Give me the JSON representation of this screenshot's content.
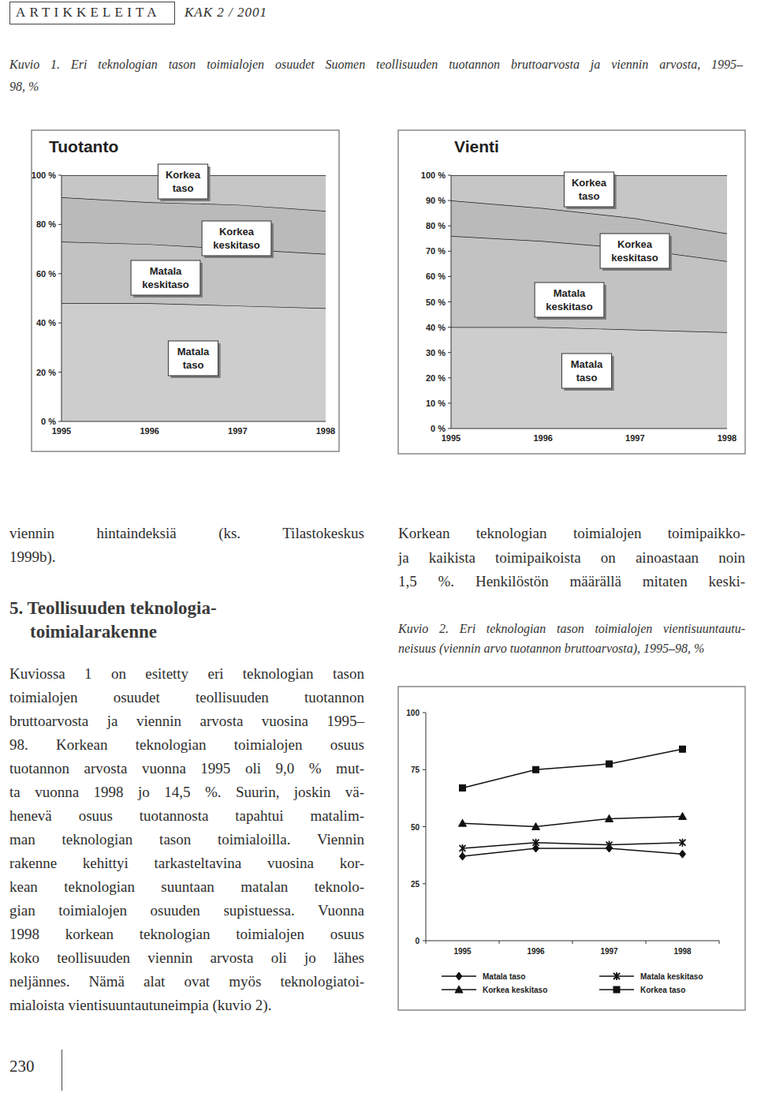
{
  "page": {
    "header": {
      "section": "ARTIKKELEITA",
      "journal": "KAK 2 / 2001"
    },
    "figure1_caption": [
      "Kuvio 1. Eri teknologian tason toimialojen osuudet Suomen teollisuuden tuotannon bruttoarvosta ja viennin arvosta, 1995–",
      "98, %"
    ],
    "left_column": {
      "paragraph_1": [
        "viennin hintaindeksiä (ks. Tilastokeskus",
        "1999b)."
      ],
      "heading": [
        "5. Teollisuuden teknologia-",
        "toimialarakenne"
      ],
      "paragraph_2": [
        "Kuviossa 1 on esitetty eri teknologian tason",
        "toimialojen osuudet teollisuuden tuotannon",
        "bruttoarvosta ja viennin arvosta vuosina 1995–",
        "98. Korkean teknologian toimialojen osuus",
        "tuotannon arvosta vuonna 1995 oli 9,0 % mut-",
        "ta vuonna 1998 jo 14,5 %. Suurin, joskin vä-",
        "henevä osuus tuotannosta tapahtui matalim-",
        "man teknologian tason toimialoilla. Viennin",
        "rakenne kehittyi tarkasteltavina vuosina kor-",
        "kean teknologian suuntaan matalan teknolo-",
        "gian toimialojen osuuden supistuessa. Vuonna",
        "1998 korkean teknologian toimialojen osuus",
        "koko teollisuuden viennin arvosta oli jo lähes",
        "neljännes. Nämä alat ovat myös teknologiatoi-",
        "mialoista vientisuuntautuneimpia (kuvio 2)."
      ]
    },
    "right_column": [
      "Korkean teknologian toimialojen toimipaikko-",
      "ja kaikista toimipaikoista on ainoastaan noin",
      "1,5 %. Henkilöstön määrällä mitaten keski-"
    ],
    "figure2_caption": [
      "Kuvio 2. Eri teknologian tason toimialojen vientisuuntautu-",
      "neisuus (viennin arvo tuotannon bruttoarvosta), 1995–98, %"
    ],
    "page_number": "230"
  },
  "chart_data": [
    {
      "type": "area",
      "stacked": true,
      "title": "Tuotanto",
      "categories": [
        "1995",
        "1996",
        "1997",
        "1998"
      ],
      "series": [
        {
          "name": "Matala taso",
          "color": "#cdcdcd",
          "values": [
            48,
            48,
            47,
            46
          ]
        },
        {
          "name": "Matala keskitaso",
          "color": "#c2c2c2",
          "values": [
            25,
            24,
            23,
            22
          ]
        },
        {
          "name": "Korkea keskitaso",
          "color": "#bababa",
          "values": [
            18,
            17,
            18,
            17.5
          ]
        },
        {
          "name": "Korkea taso",
          "color": "#c6c6c6",
          "values": [
            9,
            11,
            12,
            14.5
          ]
        }
      ],
      "ylim": [
        0,
        100
      ],
      "yticks": [
        {
          "value": 0,
          "label": "0 %"
        },
        {
          "value": 20,
          "label": "20 %"
        },
        {
          "value": 40,
          "label": "40 %"
        },
        {
          "value": 60,
          "label": "60 %"
        },
        {
          "value": 80,
          "label": "80 %"
        },
        {
          "value": 100,
          "label": "100 %"
        }
      ],
      "grid": false
    },
    {
      "type": "area",
      "stacked": true,
      "title": "Vienti",
      "categories": [
        "1995",
        "1996",
        "1997",
        "1998"
      ],
      "series": [
        {
          "name": "Matala taso",
          "color": "#cdcdcd",
          "values": [
            40,
            40,
            39,
            38
          ]
        },
        {
          "name": "Matala keskitaso",
          "color": "#c2c2c2",
          "values": [
            36,
            34,
            32,
            28
          ]
        },
        {
          "name": "Korkea keskitaso",
          "color": "#bababa",
          "values": [
            14,
            13,
            12,
            11
          ]
        },
        {
          "name": "Korkea taso",
          "color": "#c6c6c6",
          "values": [
            10,
            13,
            17,
            23
          ]
        }
      ],
      "ylim": [
        0,
        100
      ],
      "yticks": [
        {
          "value": 0,
          "label": "0 %"
        },
        {
          "value": 10,
          "label": "10 %"
        },
        {
          "value": 20,
          "label": "20 %"
        },
        {
          "value": 30,
          "label": "30 %"
        },
        {
          "value": 40,
          "label": "40 %"
        },
        {
          "value": 50,
          "label": "50 %"
        },
        {
          "value": 60,
          "label": "60 %"
        },
        {
          "value": 70,
          "label": "70 %"
        },
        {
          "value": 80,
          "label": "80 %"
        },
        {
          "value": 90,
          "label": "90 %"
        },
        {
          "value": 100,
          "label": "100 %"
        }
      ],
      "grid": false
    },
    {
      "type": "line",
      "categories": [
        "1995",
        "1996",
        "1997",
        "1998"
      ],
      "series": [
        {
          "name": "Matala taso",
          "color": "#111111",
          "marker": "diamond",
          "values": [
            37,
            40.5,
            40.5,
            38
          ]
        },
        {
          "name": "Matala keskitaso",
          "color": "#111111",
          "marker": "x",
          "values": [
            40.5,
            43,
            42,
            43
          ]
        },
        {
          "name": "Korkea keskitaso",
          "color": "#111111",
          "marker": "triangle",
          "values": [
            51.5,
            50,
            53.5,
            54.5
          ]
        },
        {
          "name": "Korkea taso",
          "color": "#111111",
          "marker": "square",
          "values": [
            67,
            75,
            77.5,
            84
          ]
        }
      ],
      "ylim": [
        0,
        100
      ],
      "yticks": [
        0,
        25,
        50,
        75,
        100
      ],
      "legend": "bottom",
      "grid": false
    }
  ]
}
